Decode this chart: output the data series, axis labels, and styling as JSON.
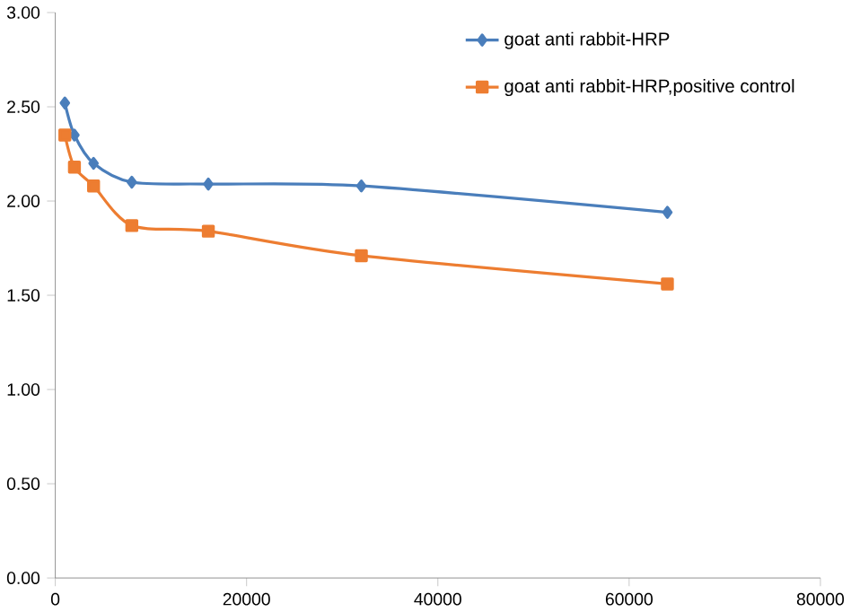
{
  "chart_data": {
    "type": "line",
    "x": [
      1000,
      2000,
      4000,
      8000,
      16000,
      32000,
      64000
    ],
    "series": [
      {
        "name": "goat anti rabbit-HRP",
        "color": "#4a7ebb",
        "marker": "diamond",
        "values": [
          2.52,
          2.35,
          2.2,
          2.1,
          2.09,
          2.08,
          1.94
        ]
      },
      {
        "name": "goat anti rabbit-HRP,positive control",
        "color": "#ed7d31",
        "marker": "square",
        "values": [
          2.35,
          2.18,
          2.08,
          1.87,
          1.84,
          1.71,
          1.56
        ]
      }
    ],
    "xlim": [
      0,
      80000
    ],
    "xticks": [
      0,
      20000,
      40000,
      60000,
      80000
    ],
    "ylim": [
      0,
      3
    ],
    "yticks": [
      {
        "value": 0,
        "label": "0.00"
      },
      {
        "value": 0.5,
        "label": "0.50"
      },
      {
        "value": 1,
        "label": "1.00"
      },
      {
        "value": 1.5,
        "label": "1.50"
      },
      {
        "value": 2,
        "label": "2.00"
      },
      {
        "value": 2.5,
        "label": "2.50"
      },
      {
        "value": 3,
        "label": "3.00"
      }
    ],
    "legend": "top right",
    "grid": false
  }
}
